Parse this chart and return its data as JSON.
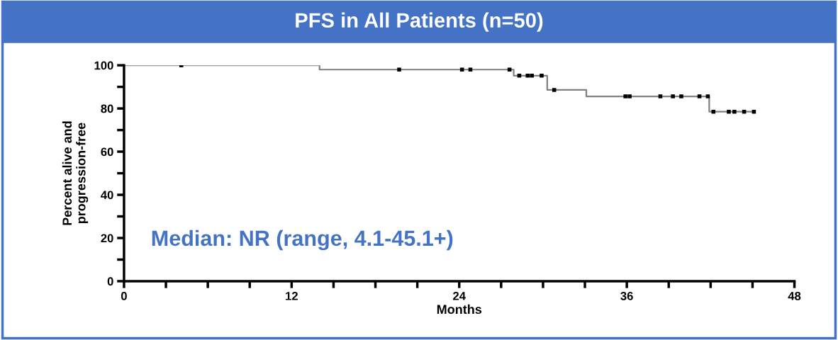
{
  "chart_data": {
    "type": "step",
    "title": "PFS in All Patients (n=50)",
    "xlabel": "Months",
    "ylabel": "Percent alive and\nprogression-free",
    "annotations": [
      "Median: NR (range, 4.1-45.1+)"
    ],
    "series": [
      {
        "color": "#808080",
        "x": [
          0,
          14,
          27.9,
          30.3,
          33.1,
          41.9,
          45.1
        ],
        "values": [
          100,
          98,
          95.2,
          88.6,
          85.6,
          78.5,
          78.5
        ]
      },
      {
        "type": "scatter",
        "marker": "square",
        "color": "#000000",
        "x": [
          4.1,
          19.7,
          24.2,
          24.8,
          27.6,
          28.3,
          28.9,
          29.2,
          29.9,
          30.8,
          35.9,
          36.2,
          38.4,
          39.3,
          39.9,
          41.2,
          41.8,
          42.2,
          43.3,
          43.7,
          44.4,
          45.1
        ],
        "values": [
          100,
          98,
          98,
          98,
          98,
          95.2,
          95.2,
          95.2,
          95.2,
          88.6,
          85.6,
          85.6,
          85.6,
          85.6,
          85.6,
          85.6,
          85.6,
          78.5,
          78.5,
          78.5,
          78.5,
          78.5
        ]
      }
    ],
    "xlim": [
      0,
      48
    ],
    "ylim": [
      0,
      100
    ],
    "xticks": [
      0,
      {
        "value": 3,
        "label": null
      },
      {
        "value": 6,
        "label": null
      },
      {
        "value": 9,
        "label": null
      },
      12,
      {
        "value": 15,
        "label": null
      },
      {
        "value": 18,
        "label": null
      },
      {
        "value": 21,
        "label": null
      },
      24,
      {
        "value": 27,
        "label": null
      },
      {
        "value": 30,
        "label": null
      },
      {
        "value": 33,
        "label": null
      },
      36,
      {
        "value": 39,
        "label": null
      },
      {
        "value": 42,
        "label": null
      },
      {
        "value": 45,
        "label": null
      },
      48
    ],
    "yticks": [
      0,
      {
        "value": 10,
        "label": null
      },
      20,
      {
        "value": 30,
        "label": null
      },
      40,
      {
        "value": 50,
        "label": null
      },
      60,
      {
        "value": 70,
        "label": null
      },
      80,
      {
        "value": 90,
        "label": null
      },
      100
    ],
    "grid": false,
    "legend": false
  }
}
